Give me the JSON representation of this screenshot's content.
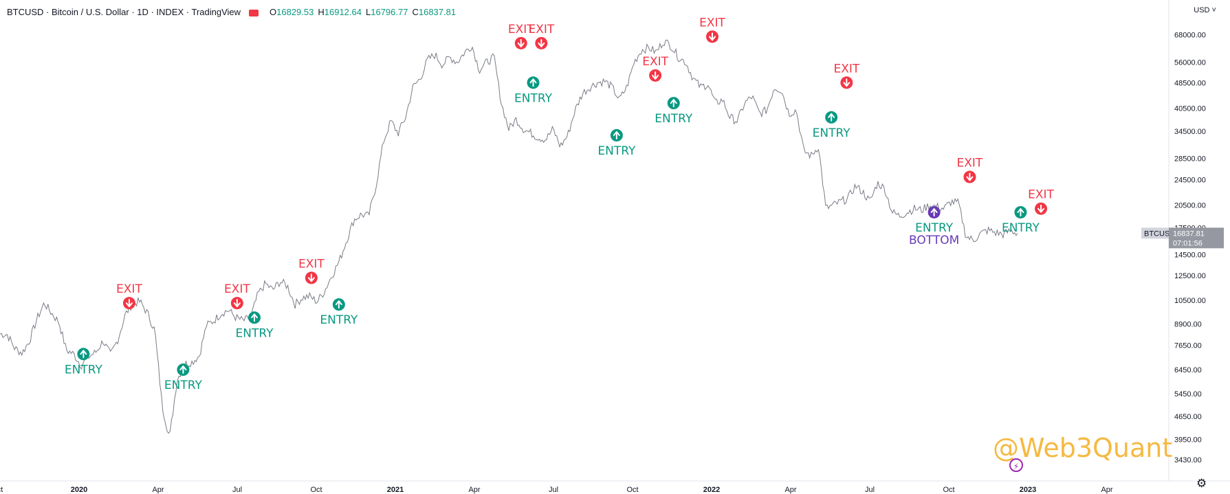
{
  "header": {
    "title": "BTCUSD · Bitcoin / U.S. Dollar · 1D · INDEX · TradingView",
    "open": "16829.53",
    "high": "16912.64",
    "low": "16796.77",
    "close": "16837.81",
    "o_label": "O",
    "h_label": "H",
    "l_label": "L",
    "c_label": "C"
  },
  "currency": "USD ˅",
  "watermark": "@Web3Quant",
  "price_tag": {
    "symbol": "BTCUSD",
    "price": "16837.81",
    "countdown": "07:01:56"
  },
  "colors": {
    "entry": "#089981",
    "exit": "#f23645",
    "bottom": "#673ab7",
    "price_tag": "#9598a1"
  },
  "chart_data": {
    "type": "line",
    "y_scale": "log",
    "ylim": [
      3250,
      75000
    ],
    "x_tick_labels": [
      "ct",
      "2020",
      "Apr",
      "Jul",
      "Oct",
      "2021",
      "Apr",
      "Jul",
      "Oct",
      "2022",
      "Apr",
      "Jul",
      "Oct",
      "2023",
      "Apr"
    ],
    "y_tick_labels": [
      "68000.00",
      "56000.00",
      "48500.00",
      "40500.00",
      "34500.00",
      "28500.00",
      "24500.00",
      "20500.00",
      "17500.00",
      "14500.00",
      "12500.00",
      "10500.00",
      "8900.00",
      "7650.00",
      "6450.00",
      "5450.00",
      "4650.00",
      "3950.00",
      "3430.00"
    ],
    "series": [
      {
        "values": [
          8300,
          8250,
          7500,
          7250,
          7900,
          9200,
          10300,
          9600,
          9000,
          7400,
          7200,
          6650,
          7050,
          7300,
          7900,
          7150,
          8000,
          9500,
          10300,
          10400,
          9600,
          8500,
          5000,
          4000,
          6000,
          6700,
          6800,
          7100,
          8800,
          9100,
          9600,
          9800,
          9300,
          9100,
          9300,
          11000,
          11800,
          11300,
          12000,
          11600,
          10200,
          10700,
          10800,
          10400,
          11200,
          12500,
          13800,
          16000,
          18500,
          19200,
          19000,
          23500,
          32000,
          37000,
          34000,
          38000,
          47000,
          50000,
          57000,
          59000,
          55000,
          58000,
          56000,
          60000,
          63000,
          53000,
          56000,
          58000,
          42000,
          35000,
          37500,
          35000,
          34000,
          33000,
          32500,
          35000,
          31000,
          33500,
          40000,
          45000,
          47000,
          48500,
          49000,
          47000,
          43000,
          47000,
          56000,
          61000,
          62000,
          60000,
          65000,
          63000,
          58000,
          56000,
          50000,
          47000,
          48000,
          42000,
          43000,
          38000,
          37000,
          42000,
          44000,
          39000,
          40000,
          47000,
          46000,
          39000,
          40000,
          30000,
          29000,
          31000,
          20000,
          20500,
          21000,
          21500,
          23500,
          22500,
          21000,
          24000,
          23000,
          19500,
          19000,
          19500,
          20000,
          19800,
          20500,
          20300,
          20000,
          21000,
          20800,
          16500,
          16000,
          16800,
          17200,
          16900,
          16700,
          17100,
          16837
        ]
      }
    ],
    "markers": [
      {
        "type": "entry",
        "label": "ENTRY",
        "x": 0.082,
        "y": 7200
      },
      {
        "type": "exit",
        "label": "EXIT",
        "x": 0.127,
        "y": 10300
      },
      {
        "type": "entry",
        "label": "ENTRY",
        "x": 0.18,
        "y": 6450
      },
      {
        "type": "exit",
        "label": "EXIT",
        "x": 0.233,
        "y": 10300
      },
      {
        "type": "entry",
        "label": "ENTRY",
        "x": 0.25,
        "y": 9300
      },
      {
        "type": "exit",
        "label": "EXIT",
        "x": 0.306,
        "y": 12300
      },
      {
        "type": "entry",
        "label": "ENTRY",
        "x": 0.333,
        "y": 10200
      },
      {
        "type": "exit",
        "label": "EXIT",
        "x": 0.512,
        "y": 64000
      },
      {
        "type": "exit",
        "label": "EXIT",
        "x": 0.532,
        "y": 64000
      },
      {
        "type": "entry",
        "label": "ENTRY",
        "x": 0.524,
        "y": 48500
      },
      {
        "type": "entry",
        "label": "ENTRY",
        "x": 0.606,
        "y": 33500
      },
      {
        "type": "exit",
        "label": "EXIT",
        "x": 0.644,
        "y": 51000
      },
      {
        "type": "entry",
        "label": "ENTRY",
        "x": 0.662,
        "y": 42000
      },
      {
        "type": "exit",
        "label": "EXIT",
        "x": 0.7,
        "y": 67000
      },
      {
        "type": "exit",
        "label": "EXIT",
        "x": 0.832,
        "y": 48500
      },
      {
        "type": "entry",
        "label": "ENTRY",
        "x": 0.817,
        "y": 38000
      },
      {
        "type": "bottom",
        "label": "ENTRY",
        "label2": "BOTTOM",
        "x": 0.918,
        "y": 19500
      },
      {
        "type": "exit",
        "label": "EXIT",
        "x": 0.953,
        "y": 25000
      },
      {
        "type": "entry",
        "label": "ENTRY",
        "x": 1.003,
        "y": 19500
      },
      {
        "type": "exit",
        "label": "EXIT",
        "x": 1.023,
        "y": 20000
      }
    ]
  }
}
